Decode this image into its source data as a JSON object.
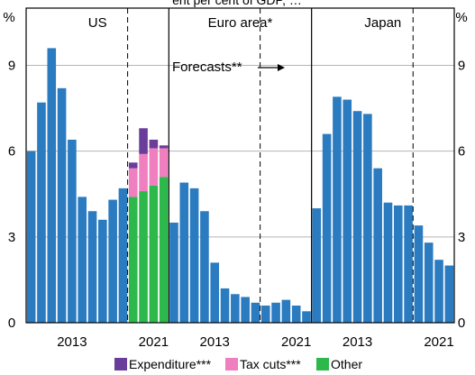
{
  "chart_data": {
    "type": "bar",
    "top_caption": "ent per cent of GDP, …",
    "y_unit_left": "%",
    "y_unit_right": "%",
    "ylim": [
      0,
      11
    ],
    "yticks": [
      0,
      3,
      6,
      9
    ],
    "grid": true,
    "legend_position": "bottom",
    "colors": {
      "base": "#2b7bc1",
      "expenditure": "#6a3d9a",
      "tax_cuts": "#ef7fbf",
      "other": "#2db84b"
    },
    "annotation": "Forecasts**",
    "legend": [
      {
        "key": "expenditure",
        "label": "Expenditure***"
      },
      {
        "key": "tax_cuts",
        "label": "Tax cuts***"
      },
      {
        "key": "other",
        "label": "Other"
      }
    ],
    "panels": [
      {
        "title": "US",
        "years": [
          2009,
          2010,
          2011,
          2012,
          2013,
          2014,
          2015,
          2016,
          2017,
          2018,
          2019,
          2020,
          2021,
          2022
        ],
        "x_tick_labels": [
          {
            "year": 2013,
            "label": "2013"
          },
          {
            "year": 2021,
            "label": "2021"
          }
        ],
        "forecast_start_year": 2019,
        "values": [
          6.0,
          7.7,
          9.6,
          8.2,
          6.4,
          4.4,
          3.9,
          3.6,
          4.3,
          4.7,
          null,
          null,
          null,
          null
        ],
        "stacked": [
          {
            "year": 2019,
            "other": 4.4,
            "tax_cuts": 1.0,
            "expenditure": 0.2
          },
          {
            "year": 2020,
            "other": 4.6,
            "tax_cuts": 1.3,
            "expenditure": 0.9
          },
          {
            "year": 2021,
            "other": 4.8,
            "tax_cuts": 1.3,
            "expenditure": 0.3
          },
          {
            "year": 2022,
            "other": 5.1,
            "tax_cuts": 1.0,
            "expenditure": 0.1
          }
        ]
      },
      {
        "title": "Euro area*",
        "years": [
          2009,
          2010,
          2011,
          2012,
          2013,
          2014,
          2015,
          2016,
          2017,
          2018,
          2019,
          2020,
          2021,
          2022
        ],
        "x_tick_labels": [
          {
            "year": 2013,
            "label": "2013"
          },
          {
            "year": 2021,
            "label": "2021"
          }
        ],
        "forecast_start_year": 2018,
        "values": [
          3.5,
          4.9,
          4.7,
          3.9,
          2.1,
          1.2,
          1.0,
          0.9,
          0.7,
          0.6,
          0.7,
          0.8,
          0.6,
          0.4
        ]
      },
      {
        "title": "Japan",
        "years": [
          2009,
          2010,
          2011,
          2012,
          2013,
          2014,
          2015,
          2016,
          2017,
          2018,
          2019,
          2020,
          2021,
          2022
        ],
        "x_tick_labels": [
          {
            "year": 2013,
            "label": "2013"
          },
          {
            "year": 2021,
            "label": "2021"
          }
        ],
        "forecast_start_year": 2019,
        "values": [
          4.0,
          6.6,
          7.9,
          7.8,
          7.4,
          7.3,
          5.4,
          4.2,
          4.1,
          4.1,
          3.4,
          2.8,
          2.2,
          2.0
        ]
      }
    ]
  }
}
